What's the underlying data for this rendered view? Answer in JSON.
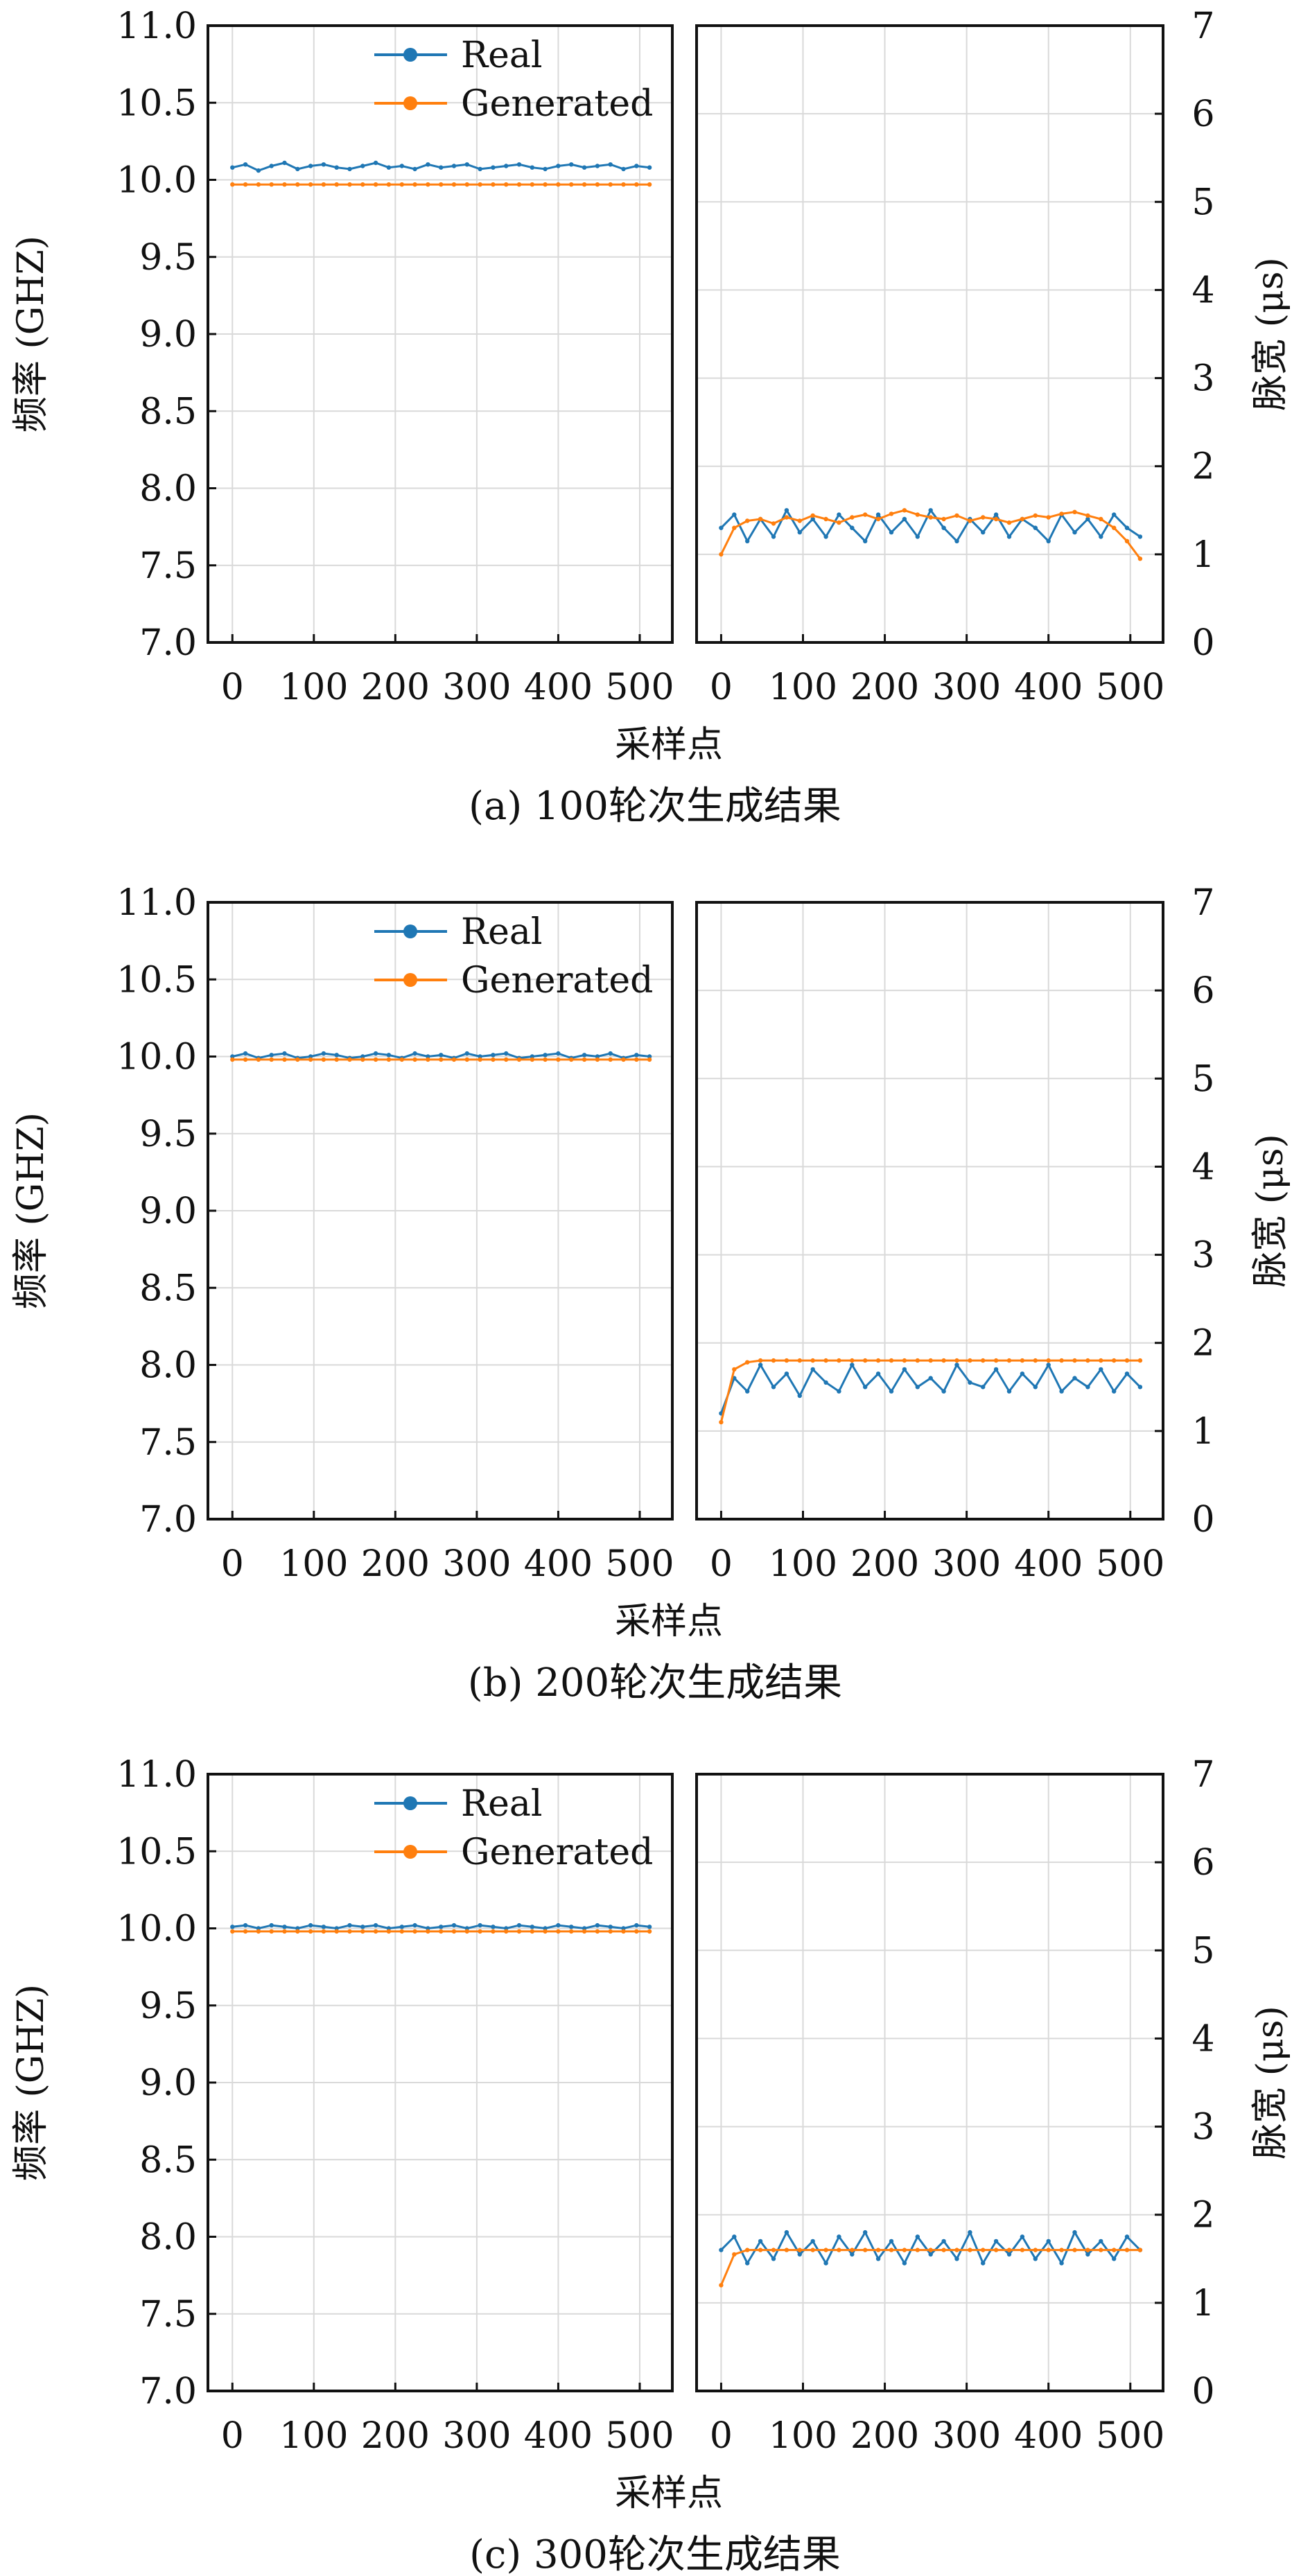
{
  "chart_data": [
    {
      "type": "line",
      "title": "",
      "caption": "(a) 100轮次生成结果",
      "xlabel": "采样点",
      "left": {
        "ylabel": "频率 (GHZ)",
        "ylim": [
          7.0,
          11.0
        ],
        "yticks": [
          "7.0",
          "7.5",
          "8.0",
          "8.5",
          "9.0",
          "9.5",
          "10.0",
          "10.5",
          "11.0"
        ],
        "xlim": [
          -30,
          540
        ],
        "xticks": [
          "0",
          "100",
          "200",
          "300",
          "400",
          "500"
        ],
        "series": [
          {
            "name": "Real",
            "color": "#1f77b4",
            "values": [
              10.08,
              10.1,
              10.06,
              10.09,
              10.11,
              10.07,
              10.09,
              10.1,
              10.08,
              10.07,
              10.09,
              10.11,
              10.08,
              10.09,
              10.07,
              10.1,
              10.08,
              10.09,
              10.1,
              10.07,
              10.08,
              10.09,
              10.1,
              10.08,
              10.07,
              10.09,
              10.1,
              10.08,
              10.09,
              10.1,
              10.07,
              10.09,
              10.08
            ]
          },
          {
            "name": "Generated",
            "color": "#ff7f0e",
            "values": [
              9.97,
              9.97,
              9.97,
              9.97,
              9.97,
              9.97,
              9.97,
              9.97,
              9.97,
              9.97,
              9.97,
              9.97,
              9.97,
              9.97,
              9.97,
              9.97,
              9.97,
              9.97,
              9.97,
              9.97,
              9.97,
              9.97,
              9.97,
              9.97,
              9.97,
              9.97,
              9.97,
              9.97,
              9.97,
              9.97,
              9.97,
              9.97,
              9.97
            ]
          }
        ]
      },
      "right": {
        "ylabel": "脉宽 (μs)",
        "ylim": [
          0,
          7
        ],
        "yticks": [
          "0",
          "1",
          "2",
          "3",
          "4",
          "5",
          "6",
          "7"
        ],
        "xlim": [
          -30,
          540
        ],
        "xticks": [
          "0",
          "100",
          "200",
          "300",
          "400",
          "500"
        ],
        "series": [
          {
            "name": "Real",
            "color": "#1f77b4",
            "values": [
              1.3,
              1.45,
              1.15,
              1.4,
              1.2,
              1.5,
              1.25,
              1.4,
              1.2,
              1.45,
              1.3,
              1.15,
              1.45,
              1.25,
              1.4,
              1.2,
              1.5,
              1.3,
              1.15,
              1.4,
              1.25,
              1.45,
              1.2,
              1.4,
              1.3,
              1.15,
              1.45,
              1.25,
              1.4,
              1.2,
              1.45,
              1.3,
              1.2
            ]
          },
          {
            "name": "Generated",
            "color": "#ff7f0e",
            "values": [
              1.0,
              1.3,
              1.38,
              1.4,
              1.35,
              1.42,
              1.38,
              1.44,
              1.4,
              1.36,
              1.42,
              1.45,
              1.4,
              1.46,
              1.5,
              1.45,
              1.42,
              1.4,
              1.44,
              1.38,
              1.42,
              1.4,
              1.36,
              1.4,
              1.44,
              1.42,
              1.46,
              1.48,
              1.44,
              1.4,
              1.3,
              1.15,
              0.95
            ]
          }
        ]
      },
      "legend": {
        "entries": [
          "Real",
          "Generated"
        ],
        "placement": "upper-center of left panel"
      },
      "grid": true
    },
    {
      "type": "line",
      "title": "",
      "caption": "(b) 200轮次生成结果",
      "xlabel": "采样点",
      "left": {
        "ylabel": "频率 (GHZ)",
        "ylim": [
          7.0,
          11.0
        ],
        "yticks": [
          "7.0",
          "7.5",
          "8.0",
          "8.5",
          "9.0",
          "9.5",
          "10.0",
          "10.5",
          "11.0"
        ],
        "xlim": [
          -30,
          540
        ],
        "xticks": [
          "0",
          "100",
          "200",
          "300",
          "400",
          "500"
        ],
        "series": [
          {
            "name": "Real",
            "color": "#1f77b4",
            "values": [
              10.0,
              10.02,
              9.99,
              10.01,
              10.02,
              9.99,
              10.0,
              10.02,
              10.01,
              9.99,
              10.0,
              10.02,
              10.01,
              9.99,
              10.02,
              10.0,
              10.01,
              9.99,
              10.02,
              10.0,
              10.01,
              10.02,
              9.99,
              10.0,
              10.01,
              10.02,
              9.99,
              10.01,
              10.0,
              10.02,
              9.99,
              10.01,
              10.0
            ]
          },
          {
            "name": "Generated",
            "color": "#ff7f0e",
            "values": [
              9.98,
              9.98,
              9.98,
              9.98,
              9.98,
              9.98,
              9.98,
              9.98,
              9.98,
              9.98,
              9.98,
              9.98,
              9.98,
              9.98,
              9.98,
              9.98,
              9.98,
              9.98,
              9.98,
              9.98,
              9.98,
              9.98,
              9.98,
              9.98,
              9.98,
              9.98,
              9.98,
              9.98,
              9.98,
              9.98,
              9.98,
              9.98,
              9.98
            ]
          }
        ]
      },
      "right": {
        "ylabel": "脉宽 (μs)",
        "ylim": [
          0,
          7
        ],
        "yticks": [
          "0",
          "1",
          "2",
          "3",
          "4",
          "5",
          "6",
          "7"
        ],
        "xlim": [
          -30,
          540
        ],
        "xticks": [
          "0",
          "100",
          "200",
          "300",
          "400",
          "500"
        ],
        "series": [
          {
            "name": "Real",
            "color": "#1f77b4",
            "values": [
              1.2,
              1.6,
              1.45,
              1.75,
              1.5,
              1.65,
              1.4,
              1.7,
              1.55,
              1.45,
              1.75,
              1.5,
              1.65,
              1.45,
              1.7,
              1.5,
              1.6,
              1.45,
              1.75,
              1.55,
              1.5,
              1.7,
              1.45,
              1.65,
              1.5,
              1.75,
              1.45,
              1.6,
              1.5,
              1.7,
              1.45,
              1.65,
              1.5
            ]
          },
          {
            "name": "Generated",
            "color": "#ff7f0e",
            "values": [
              1.1,
              1.7,
              1.78,
              1.8,
              1.8,
              1.8,
              1.8,
              1.8,
              1.8,
              1.8,
              1.8,
              1.8,
              1.8,
              1.8,
              1.8,
              1.8,
              1.8,
              1.8,
              1.8,
              1.8,
              1.8,
              1.8,
              1.8,
              1.8,
              1.8,
              1.8,
              1.8,
              1.8,
              1.8,
              1.8,
              1.8,
              1.8,
              1.8
            ]
          }
        ]
      },
      "legend": {
        "entries": [
          "Real",
          "Generated"
        ],
        "placement": "upper-center of left panel"
      },
      "grid": true
    },
    {
      "type": "line",
      "title": "",
      "caption": "(c) 300轮次生成结果",
      "xlabel": "采样点",
      "left": {
        "ylabel": "频率 (GHZ)",
        "ylim": [
          7.0,
          11.0
        ],
        "yticks": [
          "7.0",
          "7.5",
          "8.0",
          "8.5",
          "9.0",
          "9.5",
          "10.0",
          "10.5",
          "11.0"
        ],
        "xlim": [
          -30,
          540
        ],
        "xticks": [
          "0",
          "100",
          "200",
          "300",
          "400",
          "500"
        ],
        "series": [
          {
            "name": "Real",
            "color": "#1f77b4",
            "values": [
              10.01,
              10.02,
              10.0,
              10.02,
              10.01,
              10.0,
              10.02,
              10.01,
              10.0,
              10.02,
              10.01,
              10.02,
              10.0,
              10.01,
              10.02,
              10.0,
              10.01,
              10.02,
              10.0,
              10.02,
              10.01,
              10.0,
              10.02,
              10.01,
              10.0,
              10.02,
              10.01,
              10.0,
              10.02,
              10.01,
              10.0,
              10.02,
              10.01
            ]
          },
          {
            "name": "Generated",
            "color": "#ff7f0e",
            "values": [
              9.98,
              9.98,
              9.98,
              9.98,
              9.98,
              9.98,
              9.98,
              9.98,
              9.98,
              9.98,
              9.98,
              9.98,
              9.98,
              9.98,
              9.98,
              9.98,
              9.98,
              9.98,
              9.98,
              9.98,
              9.98,
              9.98,
              9.98,
              9.98,
              9.98,
              9.98,
              9.98,
              9.98,
              9.98,
              9.98,
              9.98,
              9.98,
              9.98
            ]
          }
        ]
      },
      "right": {
        "ylabel": "脉宽 (μs)",
        "ylim": [
          0,
          7
        ],
        "yticks": [
          "0",
          "1",
          "2",
          "3",
          "4",
          "5",
          "6",
          "7"
        ],
        "xlim": [
          -30,
          540
        ],
        "xticks": [
          "0",
          "100",
          "200",
          "300",
          "400",
          "500"
        ],
        "series": [
          {
            "name": "Real",
            "color": "#1f77b4",
            "values": [
              1.6,
              1.75,
              1.45,
              1.7,
              1.5,
              1.8,
              1.55,
              1.7,
              1.45,
              1.75,
              1.55,
              1.8,
              1.5,
              1.7,
              1.45,
              1.75,
              1.55,
              1.7,
              1.5,
              1.8,
              1.45,
              1.7,
              1.55,
              1.75,
              1.5,
              1.7,
              1.45,
              1.8,
              1.55,
              1.7,
              1.5,
              1.75,
              1.6
            ]
          },
          {
            "name": "Generated",
            "color": "#ff7f0e",
            "values": [
              1.2,
              1.55,
              1.6,
              1.6,
              1.6,
              1.6,
              1.6,
              1.6,
              1.6,
              1.6,
              1.6,
              1.6,
              1.6,
              1.6,
              1.6,
              1.6,
              1.6,
              1.6,
              1.6,
              1.6,
              1.6,
              1.6,
              1.6,
              1.6,
              1.6,
              1.6,
              1.6,
              1.6,
              1.6,
              1.6,
              1.6,
              1.6,
              1.6
            ]
          }
        ]
      },
      "legend": {
        "entries": [
          "Real",
          "Generated"
        ],
        "placement": "upper-center of left panel"
      },
      "grid": true
    }
  ]
}
